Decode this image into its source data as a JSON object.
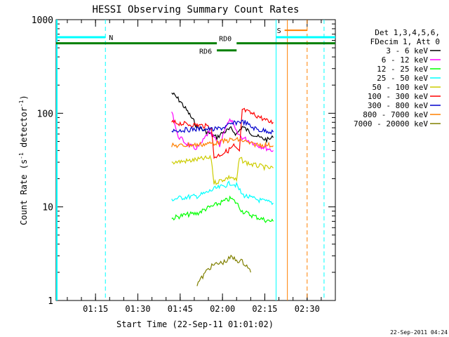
{
  "chart_data": {
    "type": "line",
    "title": "HESSI Observing Summary Count Rates",
    "xlabel": "Start Time (22-Sep-11 01:01:02)",
    "ylabel_main": "Count Rate (s",
    "ylabel_sup1": "-1",
    "ylabel_mid": " detector",
    "ylabel_sup2": "-1",
    "ylabel_end": ")",
    "y_scale": "log",
    "xlim": [
      "01:01:02",
      "02:40:00"
    ],
    "ylim": [
      1,
      1000
    ],
    "x_ticks": [
      "01:15",
      "01:30",
      "01:45",
      "02:00",
      "02:15",
      "02:30"
    ],
    "y_ticks": [
      {
        "value": 1,
        "label": "1"
      },
      {
        "value": 10,
        "label": "10"
      },
      {
        "value": 100,
        "label": "100"
      },
      {
        "value": 1000,
        "label": "1000"
      }
    ],
    "legend_position": "right",
    "legend_header": [
      "Det 1,3,4,5,6,",
      "FDecim 1, Att 0"
    ],
    "series": [
      {
        "name": "3 - 6 keV",
        "color": "#000000",
        "points": [
          [
            "01:42",
            165
          ],
          [
            "01:45",
            135
          ],
          [
            "01:48",
            100
          ],
          [
            "01:51",
            72
          ],
          [
            "01:55",
            62
          ],
          [
            "01:58",
            55
          ],
          [
            "02:00",
            62
          ],
          [
            "02:03",
            68
          ],
          [
            "02:05",
            60
          ],
          [
            "02:07",
            72
          ],
          [
            "02:10",
            62
          ],
          [
            "02:13",
            55
          ],
          [
            "02:16",
            52
          ],
          [
            "02:18",
            55
          ]
        ]
      },
      {
        "name": "6 - 12 keV",
        "color": "#ff00ff",
        "points": [
          [
            "01:42",
            110
          ],
          [
            "01:44",
            58
          ],
          [
            "01:47",
            48
          ],
          [
            "01:50",
            42
          ],
          [
            "01:52",
            45
          ],
          [
            "01:55",
            62
          ],
          [
            "01:57",
            55
          ],
          [
            "01:59",
            45
          ],
          [
            "02:01",
            72
          ],
          [
            "02:03",
            85
          ],
          [
            "02:05",
            62
          ],
          [
            "02:07",
            55
          ],
          [
            "02:10",
            50
          ],
          [
            "02:13",
            45
          ],
          [
            "02:16",
            42
          ],
          [
            "02:18",
            40
          ]
        ]
      },
      {
        "name": "12 - 25 keV",
        "color": "#00ff00",
        "points": [
          [
            "01:42",
            7.5
          ],
          [
            "01:45",
            8
          ],
          [
            "01:48",
            8.3
          ],
          [
            "01:51",
            8.5
          ],
          [
            "01:54",
            9.5
          ],
          [
            "01:57",
            10.3
          ],
          [
            "02:00",
            11.3
          ],
          [
            "02:03",
            12.3
          ],
          [
            "02:05",
            11
          ],
          [
            "02:07",
            9
          ],
          [
            "02:10",
            8.2
          ],
          [
            "02:13",
            7.6
          ],
          [
            "02:16",
            7.1
          ],
          [
            "02:18",
            7
          ]
        ]
      },
      {
        "name": "25 - 50 keV",
        "color": "#00ffff",
        "points": [
          [
            "01:42",
            12
          ],
          [
            "01:45",
            12.5
          ],
          [
            "01:48",
            12.8
          ],
          [
            "01:51",
            13
          ],
          [
            "01:54",
            14
          ],
          [
            "01:57",
            15.5
          ],
          [
            "02:00",
            16.5
          ],
          [
            "02:03",
            18
          ],
          [
            "02:05",
            17
          ],
          [
            "02:07",
            13.5
          ],
          [
            "02:10",
            12.5
          ],
          [
            "02:13",
            11.8
          ],
          [
            "02:16",
            11.3
          ],
          [
            "02:18",
            11
          ]
        ]
      },
      {
        "name": "50 - 100 keV",
        "color": "#cccc00",
        "points": [
          [
            "01:42",
            30
          ],
          [
            "01:45",
            30.5
          ],
          [
            "01:48",
            31
          ],
          [
            "01:51",
            32
          ],
          [
            "01:54",
            33
          ],
          [
            "01:56",
            33
          ],
          [
            "01:57",
            18
          ],
          [
            "02:00",
            19.5
          ],
          [
            "02:03",
            21
          ],
          [
            "02:05",
            19
          ],
          [
            "02:06",
            33
          ],
          [
            "02:08",
            30
          ],
          [
            "02:11",
            28
          ],
          [
            "02:14",
            27
          ],
          [
            "02:16",
            26
          ],
          [
            "02:18",
            26
          ]
        ]
      },
      {
        "name": "100 - 300 keV",
        "color": "#ff0000",
        "points": [
          [
            "01:42",
            80
          ],
          [
            "01:45",
            78
          ],
          [
            "01:48",
            76
          ],
          [
            "01:51",
            75
          ],
          [
            "01:54",
            73
          ],
          [
            "01:56",
            72
          ],
          [
            "01:57",
            34
          ],
          [
            "01:59",
            36
          ],
          [
            "02:02",
            40
          ],
          [
            "02:04",
            45
          ],
          [
            "02:06",
            38
          ],
          [
            "02:07",
            110
          ],
          [
            "02:10",
            100
          ],
          [
            "02:13",
            92
          ],
          [
            "02:16",
            82
          ],
          [
            "02:18",
            80
          ]
        ]
      },
      {
        "name": "300 - 800 keV",
        "color": "#0000cc",
        "points": [
          [
            "01:42",
            66
          ],
          [
            "01:45",
            66
          ],
          [
            "01:48",
            67
          ],
          [
            "01:51",
            68
          ],
          [
            "01:54",
            68
          ],
          [
            "01:57",
            67
          ],
          [
            "02:00",
            70
          ],
          [
            "02:03",
            76
          ],
          [
            "02:06",
            82
          ],
          [
            "02:08",
            80
          ],
          [
            "02:10",
            72
          ],
          [
            "02:13",
            66
          ],
          [
            "02:16",
            65
          ],
          [
            "02:18",
            63
          ]
        ]
      },
      {
        "name": "800 - 7000 keV",
        "color": "#ff8000",
        "points": [
          [
            "01:42",
            45
          ],
          [
            "01:45",
            45
          ],
          [
            "01:48",
            46
          ],
          [
            "01:51",
            46
          ],
          [
            "01:54",
            47
          ],
          [
            "01:57",
            48
          ],
          [
            "02:00",
            50
          ],
          [
            "02:03",
            52
          ],
          [
            "02:06",
            52
          ],
          [
            "02:08",
            50
          ],
          [
            "02:10",
            47
          ],
          [
            "02:13",
            46
          ],
          [
            "02:16",
            46
          ],
          [
            "02:18",
            45
          ]
        ]
      },
      {
        "name": "7000 - 20000 keV",
        "color": "#808000",
        "points": [
          [
            "01:51",
            1.5
          ],
          [
            "01:53",
            1.8
          ],
          [
            "01:55",
            2.2
          ],
          [
            "01:57",
            2.4
          ],
          [
            "01:59",
            2.5
          ],
          [
            "02:01",
            2.6
          ],
          [
            "02:03",
            2.9
          ],
          [
            "02:05",
            2.7
          ],
          [
            "02:07",
            2.6
          ],
          [
            "02:09",
            2.3
          ],
          [
            "02:10",
            2.0
          ]
        ]
      }
    ],
    "annotations": {
      "bars": [
        {
          "label": "",
          "color": "#00ffff",
          "from": "01:01:02",
          "to": "01:18:30",
          "y": 650
        },
        {
          "label": "N",
          "color": "#00ffff",
          "at": "01:18:30",
          "y": 650
        },
        {
          "label": "S",
          "color": "#ff8000",
          "at": "02:21",
          "y": 770
        },
        {
          "label": "RD0",
          "color": "#008000",
          "at": "02:01",
          "y": 560
        },
        {
          "label": "RD6",
          "color": "#008000",
          "at": "01:57",
          "y": 470
        }
      ],
      "vlines": [
        {
          "at": "01:18:30",
          "color": "#00ffff",
          "style": "dashed"
        },
        {
          "at": "02:19",
          "color": "#00ffff",
          "style": "solid"
        },
        {
          "at": "02:23",
          "color": "#ff8000",
          "style": "solid"
        },
        {
          "at": "02:30",
          "color": "#ff8000",
          "style": "dashed"
        },
        {
          "at": "02:36",
          "color": "#00ffff",
          "style": "dashed"
        }
      ]
    }
  },
  "footer_date": "22-Sep-2011 04:24"
}
